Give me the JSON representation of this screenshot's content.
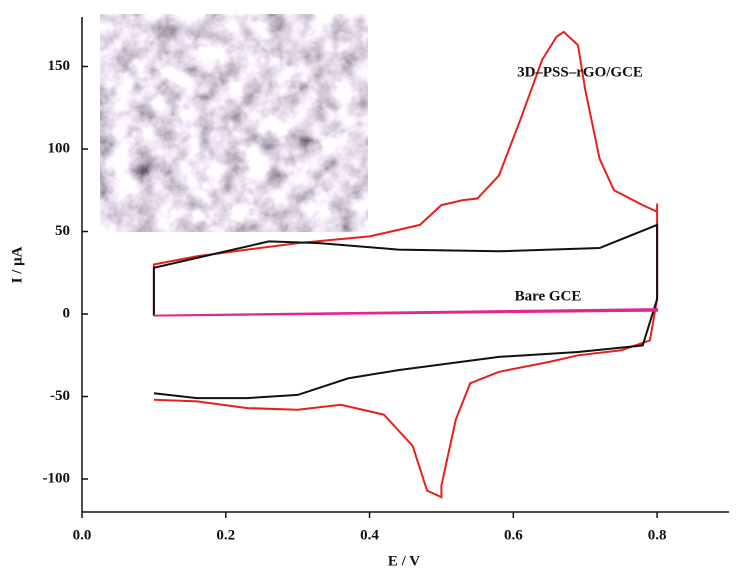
{
  "chart_data": {
    "type": "line",
    "xlabel": "E / V",
    "ylabel": "I / μA",
    "xlim": [
      0,
      0.9
    ],
    "xticks": [
      {
        "value": 0,
        "label": "0.0"
      },
      0.2,
      0.4,
      0.6,
      0.8
    ],
    "ylim": [
      -120,
      180
    ],
    "yticks": [
      -100,
      -50,
      0,
      50,
      100,
      150
    ],
    "series": [
      {
        "name": "3D–PSS–rGO/GCE",
        "color": "#e8201c",
        "x": [
          0.1,
          0.1,
          0.16,
          0.23,
          0.3,
          0.4,
          0.47,
          0.5,
          0.53,
          0.55,
          0.58,
          0.61,
          0.64,
          0.66,
          0.67,
          0.69,
          0.7,
          0.72,
          0.74,
          0.78,
          0.8,
          0.8,
          0.8,
          0.79,
          0.75,
          0.69,
          0.65,
          0.58,
          0.54,
          0.52,
          0.5,
          0.5,
          0.48,
          0.46,
          0.42,
          0.36,
          0.3,
          0.23,
          0.16,
          0.1
        ],
        "values": [
          -1,
          30,
          35,
          39,
          43,
          47,
          54,
          66,
          69,
          70,
          84,
          118,
          154,
          168,
          171,
          163,
          136,
          94,
          75,
          66,
          62,
          67,
          9,
          -16,
          -22,
          -25,
          -29,
          -35,
          -42,
          -64,
          -104,
          -111,
          -107,
          -80,
          -61,
          -55,
          -58,
          -57,
          -53,
          -52
        ]
      },
      {
        "color": "#111111",
        "x": [
          0.1,
          0.1,
          0.16,
          0.26,
          0.33,
          0.44,
          0.58,
          0.72,
          0.8,
          0.8,
          0.78,
          0.69,
          0.58,
          0.44,
          0.37,
          0.3,
          0.23,
          0.16,
          0.1
        ],
        "values": [
          -1,
          28,
          34,
          44,
          43,
          39,
          38,
          40,
          54,
          9,
          -19,
          -23,
          -26,
          -34,
          -39,
          -49,
          -51,
          -51,
          -48
        ]
      },
      {
        "name": "Bare GCE",
        "color": "#e0288c",
        "x": [
          0.1,
          0.8,
          0.8,
          0.1
        ],
        "values": [
          -1,
          3,
          2,
          -1
        ]
      }
    ]
  }
}
